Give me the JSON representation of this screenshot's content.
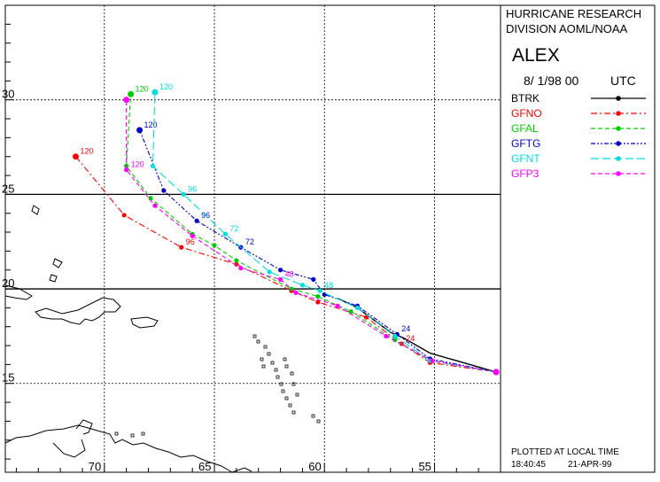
{
  "header": {
    "org_line1": "HURRICANE RESEARCH",
    "org_line2": "DIVISION AOML/NOAA",
    "storm_name": "ALEX",
    "init_date": "8/ 1/98 00",
    "init_tz": "UTC"
  },
  "footer": {
    "plotted_label": "PLOTTED AT LOCAL TIME",
    "plot_time": "18:40:45",
    "plot_date": "21-APR-99"
  },
  "colors": {
    "background": "#ffffff",
    "land": "#000000",
    "grid": "#000000",
    "BTRK": "#000000",
    "GFNO": "#ff0000",
    "GFAL": "#00cc00",
    "GFTG": "#0000cc",
    "GFNT": "#00dddd",
    "GFP3": "#ff00ff"
  },
  "chart_data": {
    "type": "line",
    "xlabel": "",
    "ylabel": "",
    "x_axis": {
      "name": "longitude",
      "min": 74.5,
      "max": 52.0,
      "ticks": [
        70,
        65,
        60,
        55
      ],
      "tick_labels": [
        "70",
        "65",
        "60",
        "55"
      ]
    },
    "y_axis": {
      "name": "latitude",
      "min": 10.3,
      "max": 35.0,
      "ticks": [
        15,
        20,
        25,
        30
      ],
      "tick_labels": [
        "15",
        "20",
        "25",
        "30"
      ]
    },
    "grid": true,
    "legend_position": "right",
    "series": [
      {
        "name": "BTRK",
        "style": "solid",
        "color": "#000000",
        "points": [
          [
            52.2,
            15.6
          ],
          [
            55.2,
            16.6
          ],
          [
            56.4,
            17.4
          ],
          [
            57.0,
            17.7
          ],
          [
            58.5,
            19.0
          ],
          [
            59.4,
            19.5
          ]
        ]
      },
      {
        "name": "GFNO",
        "style": "dash-dot",
        "color": "#ff0000",
        "points": [
          [
            52.2,
            15.6
          ],
          [
            55.2,
            16.1
          ],
          [
            56.5,
            17.1
          ],
          [
            58.1,
            18.5
          ],
          [
            60.3,
            19.3
          ],
          [
            61.5,
            19.9
          ],
          [
            64.0,
            21.3
          ],
          [
            66.5,
            22.2
          ],
          [
            69.1,
            23.9
          ],
          [
            71.3,
            27.0
          ]
        ],
        "labels": [
          {
            "text": "24",
            "at": 56.5
          },
          {
            "text": "96",
            "at": 66.5
          },
          {
            "text": "120",
            "at": 71.3
          }
        ]
      },
      {
        "name": "GFAL",
        "style": "dashed",
        "color": "#00cc00",
        "points": [
          [
            52.2,
            15.6
          ],
          [
            55.2,
            16.2
          ],
          [
            56.8,
            17.3
          ],
          [
            58.8,
            18.8
          ],
          [
            60.3,
            19.6
          ],
          [
            61.5,
            20.0
          ],
          [
            64.0,
            21.5
          ],
          [
            65.0,
            22.3
          ],
          [
            66.0,
            22.9
          ],
          [
            67.9,
            24.8
          ],
          [
            69.0,
            26.5
          ],
          [
            68.8,
            30.3
          ]
        ],
        "labels": [
          {
            "text": "120",
            "at": 68.8
          }
        ]
      },
      {
        "name": "GFTG",
        "style": "dash-dot-dot",
        "color": "#0000cc",
        "points": [
          [
            52.2,
            15.6
          ],
          [
            55.2,
            16.3
          ],
          [
            56.7,
            17.6
          ],
          [
            58.5,
            19.1
          ],
          [
            60.0,
            19.7
          ],
          [
            60.5,
            20.5
          ],
          [
            62.0,
            21.0
          ],
          [
            63.8,
            22.2
          ],
          [
            65.8,
            23.6
          ],
          [
            67.3,
            25.2
          ],
          [
            68.4,
            28.4
          ]
        ],
        "labels": [
          {
            "text": "24",
            "at": 56.7
          },
          {
            "text": "96",
            "at": 65.8
          },
          {
            "text": "72",
            "at": 63.8
          },
          {
            "text": "120",
            "at": 68.4
          }
        ]
      },
      {
        "name": "GFNT",
        "style": "long-dash",
        "color": "#00dddd",
        "points": [
          [
            52.2,
            15.6
          ],
          [
            55.2,
            16.2
          ],
          [
            56.8,
            17.5
          ],
          [
            58.5,
            19.0
          ],
          [
            60.2,
            19.9
          ],
          [
            61.0,
            20.2
          ],
          [
            62.5,
            20.9
          ],
          [
            64.5,
            22.9
          ],
          [
            66.4,
            25.0
          ],
          [
            67.8,
            26.5
          ],
          [
            67.7,
            30.4
          ]
        ],
        "labels": [
          {
            "text": "48",
            "at": 60.2
          },
          {
            "text": "72",
            "at": 64.5
          },
          {
            "text": "96",
            "at": 66.4
          },
          {
            "text": "120",
            "at": 67.7
          }
        ]
      },
      {
        "name": "GFP3",
        "style": "dashed",
        "color": "#ff00ff",
        "points": [
          [
            52.2,
            15.6
          ],
          [
            55.1,
            16.2
          ],
          [
            57.2,
            17.5
          ],
          [
            59.4,
            19.1
          ],
          [
            61.3,
            19.8
          ],
          [
            62.0,
            20.5
          ],
          [
            63.8,
            21.1
          ],
          [
            66.0,
            22.8
          ],
          [
            67.7,
            24.4
          ],
          [
            69.0,
            26.3
          ],
          [
            69.0,
            30.0
          ]
        ],
        "labels": [
          {
            "text": "48",
            "at": 62.0
          },
          {
            "text": "120",
            "at": 69.0
          }
        ]
      }
    ]
  }
}
